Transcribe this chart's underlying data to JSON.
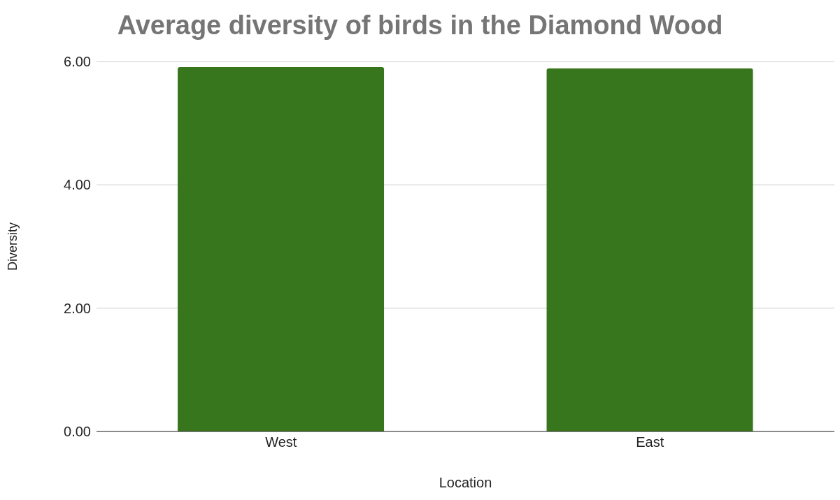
{
  "chart_data": {
    "type": "bar",
    "title": "Average diversity of birds in the Diamond Wood",
    "xlabel": "Location",
    "ylabel": "Diversity",
    "categories": [
      "West",
      "East"
    ],
    "values": [
      5.91,
      5.89
    ],
    "color": "#38761d",
    "ylim": [
      0,
      6
    ],
    "yticks": [
      {
        "value": 0,
        "label": "0.00"
      },
      {
        "value": 2,
        "label": "2.00"
      },
      {
        "value": 4,
        "label": "4.00"
      },
      {
        "value": 6,
        "label": "6.00"
      }
    ],
    "grid": "y"
  }
}
